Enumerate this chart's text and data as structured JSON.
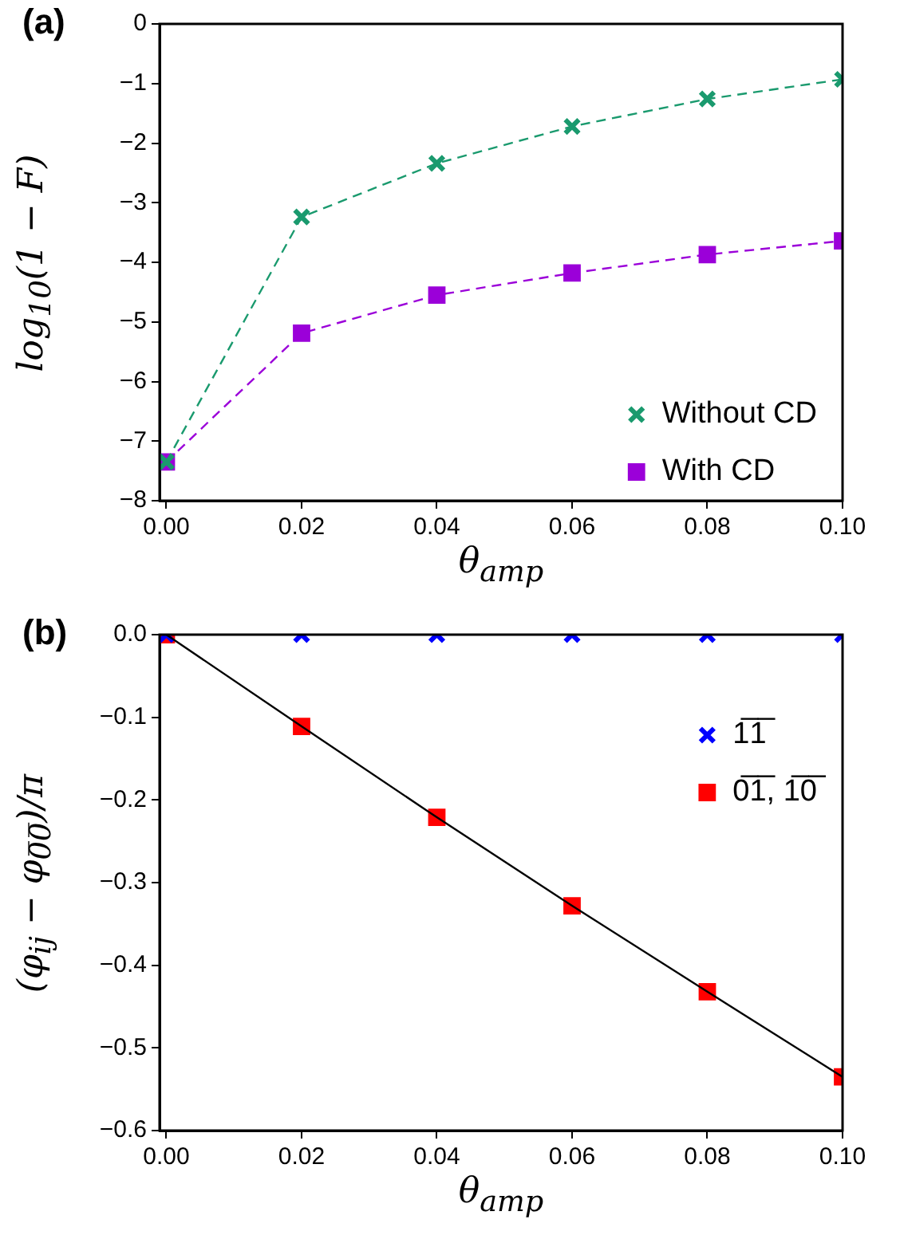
{
  "chart_data": [
    {
      "type": "line",
      "title": "(a)",
      "xlabel": "θ$_{amp}$",
      "ylabel": "log$_{10}$(1 − F)",
      "x": [
        0,
        0.02,
        0.04,
        0.06,
        0.08,
        0.1
      ],
      "xlim": [
        -0.001,
        0.1
      ],
      "xticks": [
        {
          "value": 0,
          "label": "0.00"
        },
        {
          "value": 0.02,
          "label": "0.02"
        },
        {
          "value": 0.04,
          "label": "0.04"
        },
        {
          "value": 0.06,
          "label": "0.06"
        },
        {
          "value": 0.08,
          "label": "0.08"
        },
        {
          "value": 0.1,
          "label": "0.10"
        }
      ],
      "ylim": [
        -8,
        0
      ],
      "yticks": [
        {
          "value": -8,
          "label": "−8"
        },
        {
          "value": -7,
          "label": "−7"
        },
        {
          "value": -6,
          "label": "−6"
        },
        {
          "value": -5,
          "label": "−5"
        },
        {
          "value": -4,
          "label": "−4"
        },
        {
          "value": -3,
          "label": "−3"
        },
        {
          "value": -2,
          "label": "−2"
        },
        {
          "value": -1,
          "label": "−1"
        },
        0
      ],
      "grid": false,
      "legend": "bottom right",
      "line_style": "dashed",
      "series": [
        {
          "name": "Without CD",
          "color": "#1a9a6e",
          "marker": "cross",
          "values": [
            -7.35,
            -3.24,
            -2.34,
            -1.72,
            -1.26,
            -0.93
          ]
        },
        {
          "name": "With CD",
          "color": "#9b00d9",
          "marker": "square",
          "values": [
            -7.35,
            -5.19,
            -4.55,
            -4.18,
            -3.87,
            -3.64
          ]
        }
      ]
    },
    {
      "type": "scatter",
      "title": "(b)",
      "xlabel": "θ$_{amp}$",
      "ylabel": "(φ$_{ij}$ − φ$_{0̅0̅}$)/π",
      "x": [
        0,
        0.02,
        0.04,
        0.06,
        0.08,
        0.1
      ],
      "xlim": [
        -0.001,
        0.1
      ],
      "xticks": [
        {
          "value": 0,
          "label": "0.00"
        },
        {
          "value": 0.02,
          "label": "0.02"
        },
        {
          "value": 0.04,
          "label": "0.04"
        },
        {
          "value": 0.06,
          "label": "0.06"
        },
        {
          "value": 0.08,
          "label": "0.08"
        },
        {
          "value": 0.1,
          "label": "0.10"
        }
      ],
      "ylim": [
        -0.6,
        0
      ],
      "yticks": [
        {
          "value": -0.6,
          "label": "−0.6"
        },
        {
          "value": -0.5,
          "label": "−0.5"
        },
        {
          "value": -0.4,
          "label": "−0.4"
        },
        {
          "value": -0.3,
          "label": "−0.3"
        },
        {
          "value": -0.2,
          "label": "−0.2"
        },
        {
          "value": -0.1,
          "label": "−0.1"
        },
        {
          "value": 0,
          "label": "0.0"
        }
      ],
      "grid": false,
      "legend": "top right",
      "series": [
        {
          "type": "line",
          "color": "#000000",
          "marker": "none",
          "line_style": "solid",
          "x": [
            0,
            0.02,
            0.04,
            0.06,
            0.08,
            0.1
          ],
          "values": [
            0,
            -0.111,
            -0.221,
            -0.328,
            -0.432,
            -0.535
          ]
        },
        {
          "name": "1̅1̅",
          "color": "#0000ff",
          "marker": "cross",
          "values": [
            0,
            0,
            0,
            0,
            0,
            0
          ]
        },
        {
          "name": "0̅1̅, 1̅0̅",
          "color": "#ff0000",
          "marker": "square",
          "values": [
            0,
            -0.111,
            -0.221,
            -0.328,
            -0.432,
            -0.535
          ]
        }
      ]
    }
  ]
}
